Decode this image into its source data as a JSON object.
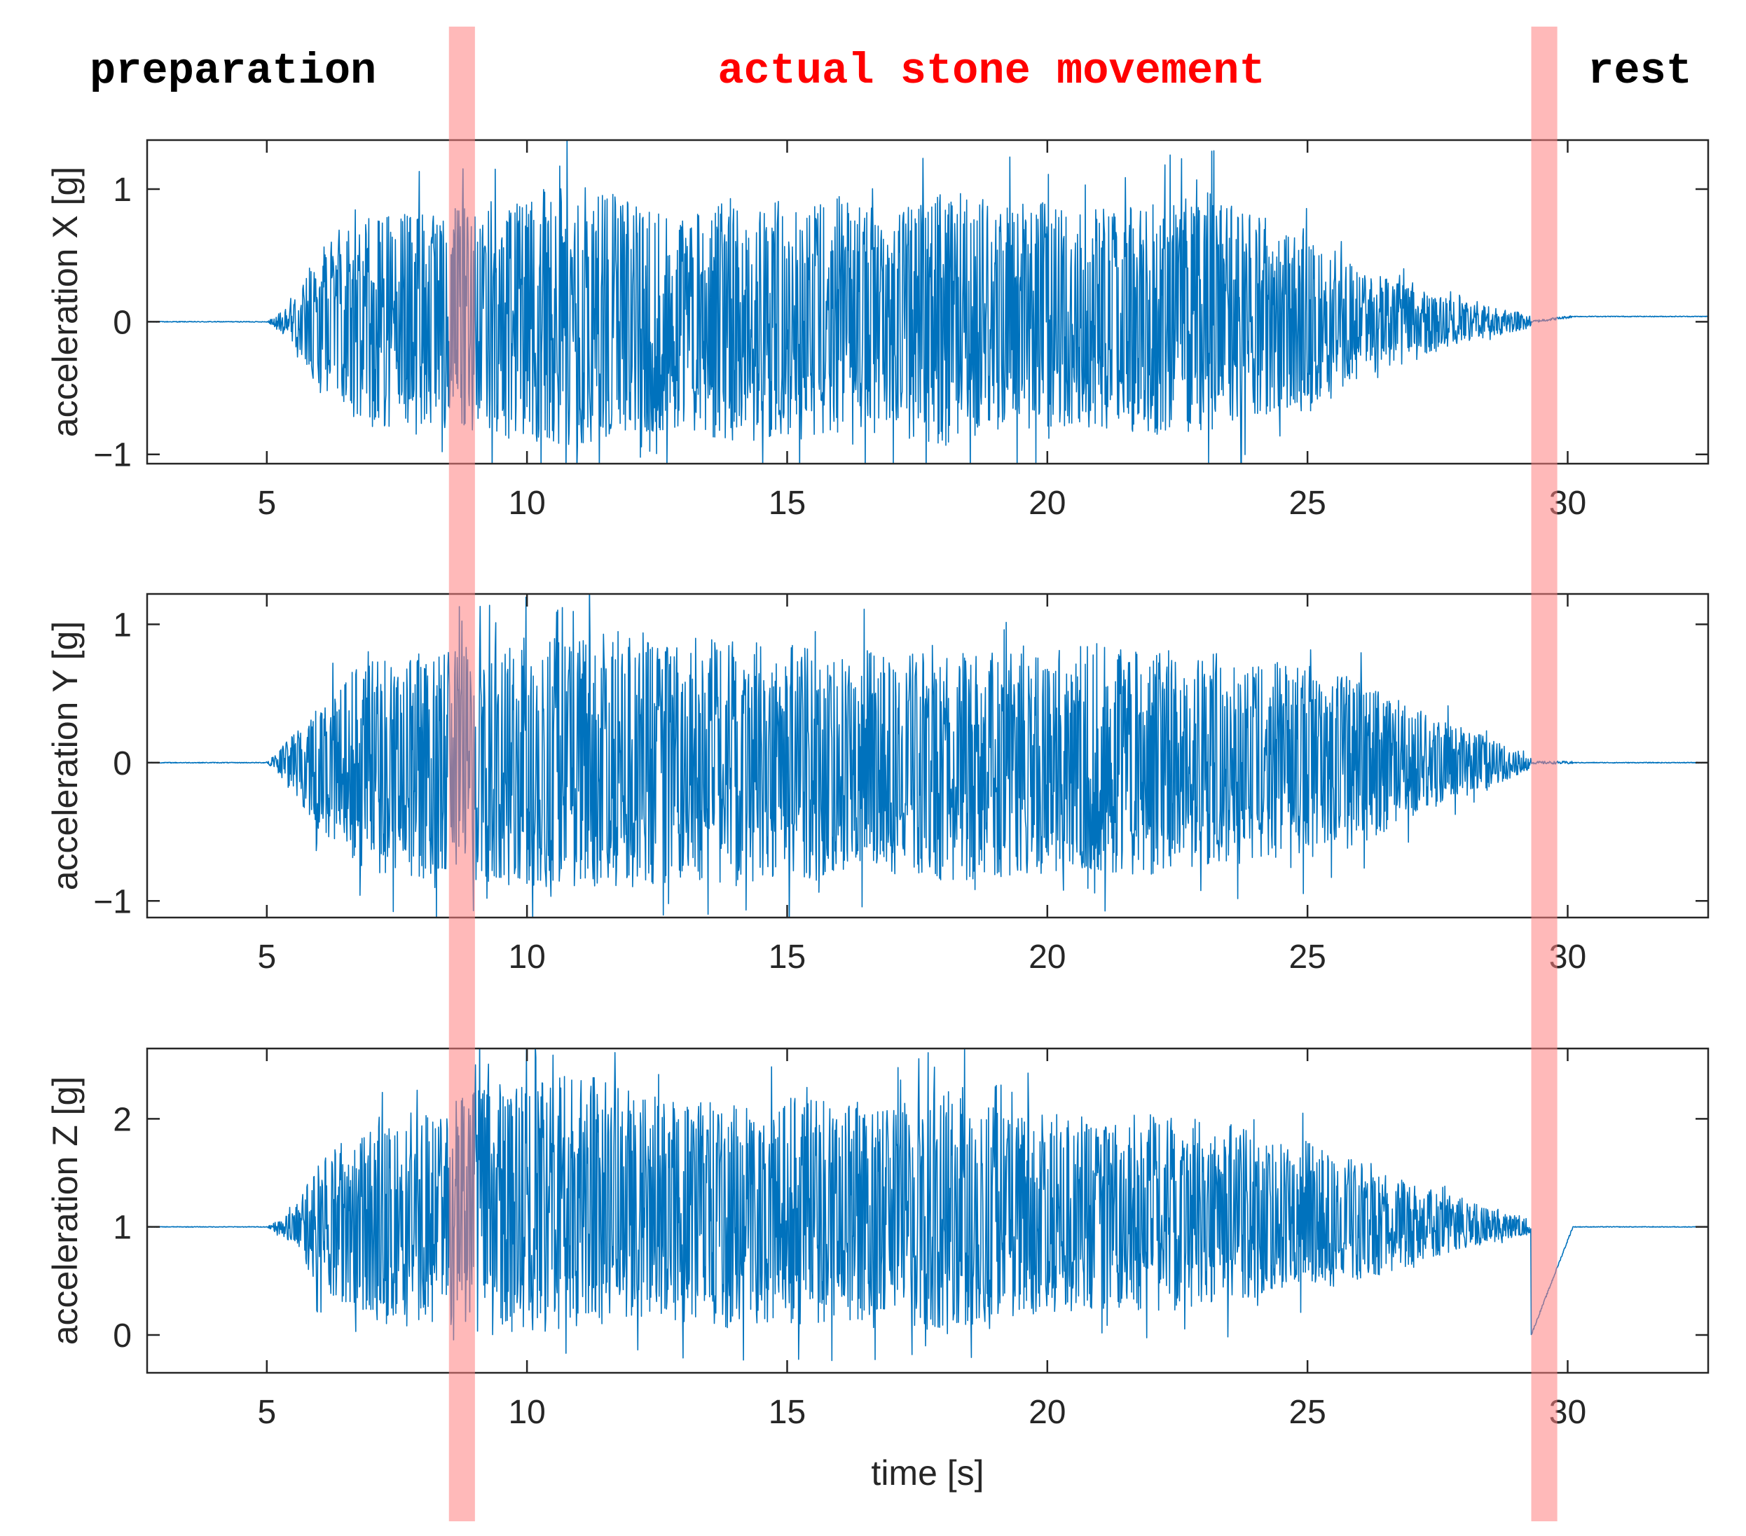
{
  "phases": {
    "preparation": "preparation",
    "movement": "actual stone movement",
    "rest": "rest"
  },
  "colors": {
    "signal": "#0072BD",
    "band": "#FF8080",
    "movement_text": "#FF0000",
    "phase_text": "#000000"
  },
  "chart_data": [
    {
      "type": "line",
      "ylabel": "acceleration X [g]",
      "xlabel": "",
      "xlim": [
        2.7,
        32.7
      ],
      "ylim": [
        -1.07,
        1.37
      ],
      "xticks": [
        5,
        10,
        15,
        20,
        25,
        30
      ],
      "yticks": [
        -1,
        0,
        1
      ],
      "ytick_labels": [
        "−1",
        "0",
        "1"
      ],
      "series": [
        {
          "name": "acceleration X",
          "baseline_before": 0.0,
          "baseline_after": 0.04,
          "envelope": {
            "t": [
              5.0,
              5.5,
              6.0,
              7.0,
              8.0,
              9.0,
              10.0,
              11.0,
              12.0,
              13.0,
              14.0,
              15.0,
              16.0,
              17.0,
              18.0,
              19.0,
              20.0,
              21.0,
              22.0,
              23.0,
              24.0,
              25.0,
              26.0,
              27.0,
              28.0,
              29.0,
              29.3
            ],
            "upper": [
              0.0,
              0.15,
              0.55,
              0.8,
              0.85,
              0.9,
              0.95,
              1.1,
              0.9,
              0.8,
              0.95,
              0.95,
              0.95,
              0.8,
              1.0,
              0.9,
              0.9,
              0.85,
              0.9,
              1.0,
              0.8,
              0.7,
              0.45,
              0.25,
              0.15,
              0.08,
              0.04
            ],
            "lower": [
              0.0,
              -0.15,
              -0.55,
              -0.8,
              -0.8,
              -0.85,
              -0.9,
              -0.95,
              -0.9,
              -0.8,
              -1.0,
              -0.9,
              -0.85,
              -0.85,
              -0.95,
              -0.85,
              -0.8,
              -0.8,
              -0.85,
              -0.85,
              -0.75,
              -0.7,
              -0.45,
              -0.3,
              -0.15,
              -0.08,
              -0.04
            ]
          }
        }
      ]
    },
    {
      "type": "line",
      "ylabel": "acceleration Y [g]",
      "xlabel": "",
      "xlim": [
        2.7,
        32.7
      ],
      "ylim": [
        -1.12,
        1.22
      ],
      "xticks": [
        5,
        10,
        15,
        20,
        25,
        30
      ],
      "yticks": [
        -1,
        0,
        1
      ],
      "ytick_labels": [
        "−1",
        "0",
        "1"
      ],
      "series": [
        {
          "name": "acceleration Y",
          "baseline_before": 0.0,
          "baseline_after": 0.0,
          "bump": {
            "t": 5.2,
            "value": 0.25
          },
          "envelope": {
            "t": [
              5.0,
              5.5,
              6.0,
              7.0,
              8.0,
              9.0,
              10.0,
              11.0,
              12.0,
              13.0,
              14.0,
              15.0,
              16.0,
              17.0,
              18.0,
              19.0,
              20.0,
              21.0,
              22.0,
              23.0,
              24.0,
              25.0,
              26.0,
              27.0,
              28.0,
              29.0,
              29.3
            ],
            "upper": [
              0.0,
              0.2,
              0.5,
              0.75,
              0.8,
              0.85,
              0.85,
              0.95,
              0.95,
              0.9,
              0.9,
              0.85,
              0.85,
              0.8,
              0.8,
              0.8,
              0.8,
              0.9,
              0.8,
              0.85,
              0.75,
              0.7,
              0.6,
              0.4,
              0.25,
              0.1,
              0.04
            ],
            "lower": [
              0.0,
              -0.2,
              -0.5,
              -0.8,
              -0.85,
              -0.85,
              -0.9,
              -0.9,
              -0.9,
              -0.85,
              -0.9,
              -0.85,
              -0.85,
              -0.8,
              -0.85,
              -0.85,
              -0.8,
              -0.8,
              -0.85,
              -0.8,
              -0.7,
              -0.7,
              -0.6,
              -0.4,
              -0.25,
              -0.1,
              -0.04
            ]
          }
        }
      ]
    },
    {
      "type": "line",
      "ylabel": "acceleration Z [g]",
      "xlabel": "time [s]",
      "xlim": [
        2.7,
        32.7
      ],
      "ylim": [
        -0.35,
        2.65
      ],
      "xticks": [
        5,
        10,
        15,
        20,
        25,
        30
      ],
      "yticks": [
        0,
        1,
        2
      ],
      "ytick_labels": [
        "0",
        "1",
        "2"
      ],
      "series": [
        {
          "name": "acceleration Z",
          "baseline_before": 1.0,
          "baseline_after": 1.0,
          "envelope": {
            "t": [
              5.0,
              5.5,
              6.0,
              7.0,
              8.0,
              9.0,
              10.0,
              11.0,
              12.0,
              13.0,
              14.0,
              15.0,
              16.0,
              17.0,
              18.0,
              19.0,
              20.0,
              21.0,
              22.0,
              23.0,
              24.0,
              25.0,
              26.0,
              27.0,
              28.0,
              29.0,
              29.3
            ],
            "upper": [
              1.0,
              1.15,
              1.6,
              2.0,
              2.15,
              2.3,
              2.35,
              2.45,
              2.3,
              2.2,
              2.2,
              2.2,
              2.2,
              2.1,
              2.3,
              2.1,
              2.05,
              2.0,
              2.05,
              2.0,
              1.9,
              1.8,
              1.6,
              1.4,
              1.25,
              1.12,
              1.06
            ],
            "lower": [
              1.0,
              0.85,
              0.4,
              0.1,
              0.05,
              0.0,
              0.0,
              0.05,
              0.15,
              0.1,
              0.05,
              0.1,
              0.1,
              0.15,
              0.0,
              0.15,
              0.2,
              0.25,
              0.2,
              0.25,
              0.35,
              0.4,
              0.5,
              0.65,
              0.8,
              0.9,
              0.95
            ]
          }
        }
      ]
    }
  ],
  "bands": [
    {
      "name": "movement-start",
      "x_start": 8.5,
      "x_end": 9.0
    },
    {
      "name": "movement-end",
      "x_start": 29.3,
      "x_end": 29.8
    }
  ]
}
